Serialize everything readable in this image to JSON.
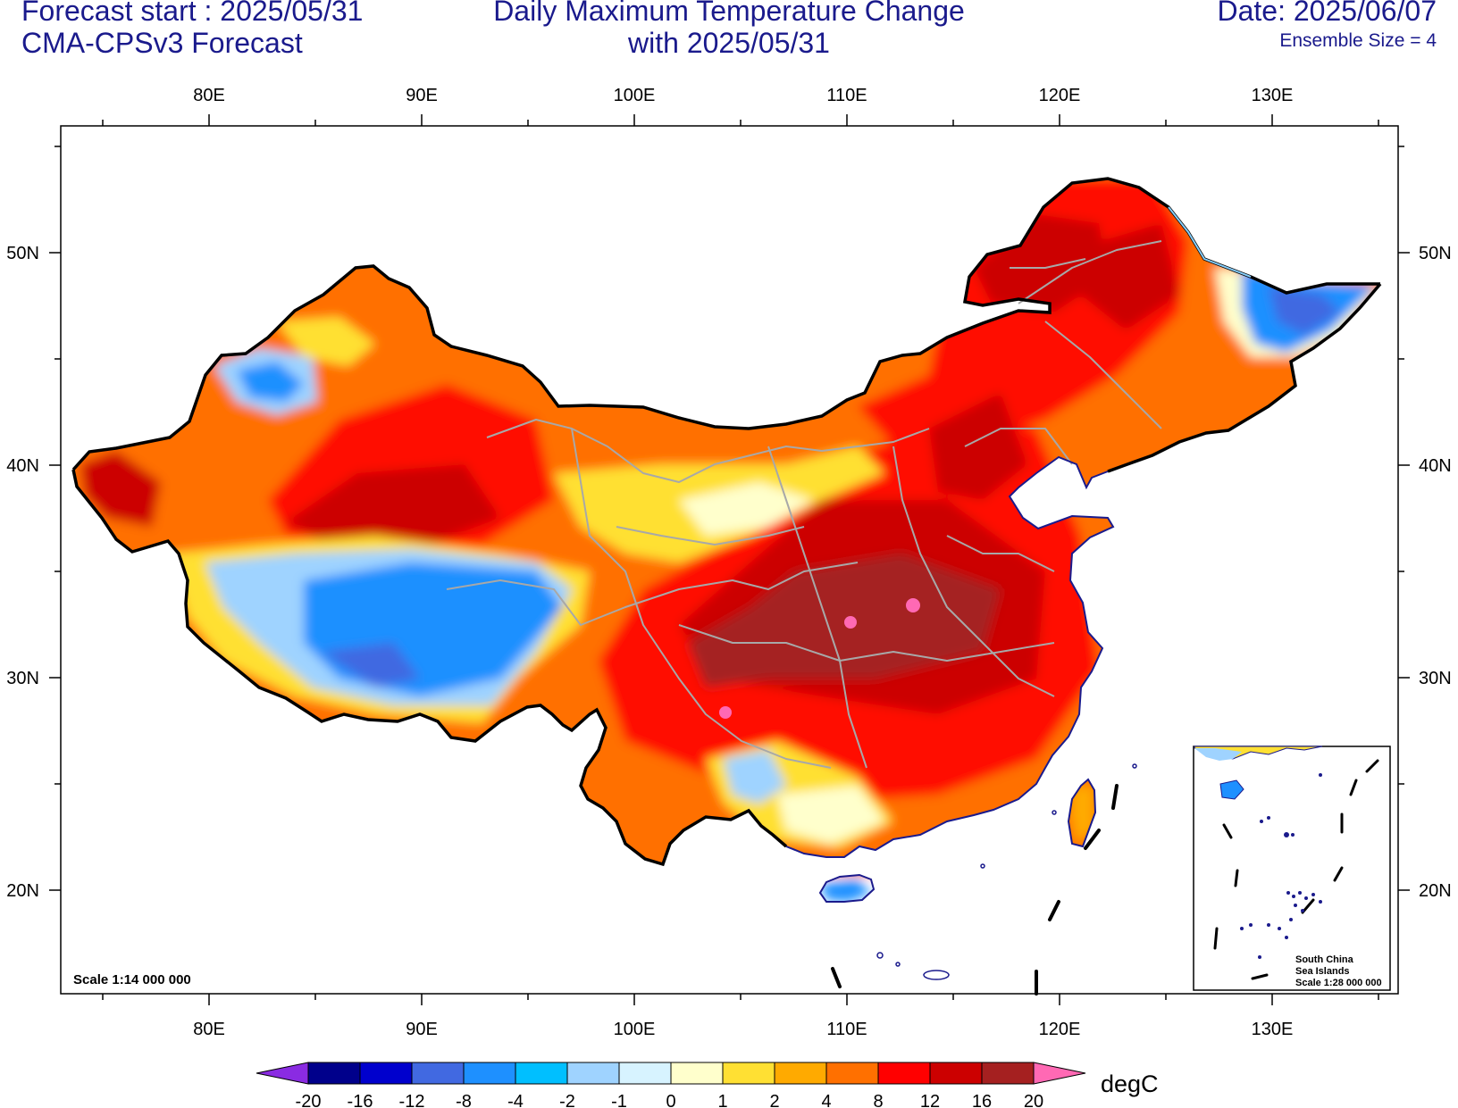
{
  "header": {
    "forecast_start": "Forecast start : 2025/05/31",
    "model": "CMA-CPSv3 Forecast",
    "title_line1": "Daily Maximum Temperature Change",
    "title_line2": "with 2025/05/31",
    "date": "Date: 2025/06/07",
    "ensemble": "Ensemble Size = 4"
  },
  "map": {
    "scale_label": "Scale 1:14 000 000",
    "lon_ticks": [
      "80E",
      "90E",
      "100E",
      "110E",
      "120E",
      "130E"
    ],
    "lat_ticks": [
      "50N",
      "40N",
      "30N",
      "20N"
    ],
    "inset": {
      "line1": "South China",
      "line2": "Sea Islands",
      "line3": "Scale 1:28 000 000"
    }
  },
  "colorbar": {
    "unit": "degC",
    "levels": [
      "-20",
      "-16",
      "-12",
      "-8",
      "-4",
      "-2",
      "-1",
      "0",
      "1",
      "2",
      "4",
      "8",
      "12",
      "16",
      "20"
    ],
    "colors": [
      "#8a2be2",
      "#00008b",
      "#0000cd",
      "#4169e1",
      "#1e90ff",
      "#00bfff",
      "#9fd3ff",
      "#d7f3ff",
      "#ffffcc",
      "#ffe033",
      "#ffaa00",
      "#ff7000",
      "#ff0000",
      "#cc0000",
      "#a52020",
      "#ff69b4"
    ]
  },
  "colors": {
    "title_text": "#1a1a8c",
    "border": "#000000",
    "province_lines": "#a8a8a8",
    "coast_water": "#87cefa"
  }
}
